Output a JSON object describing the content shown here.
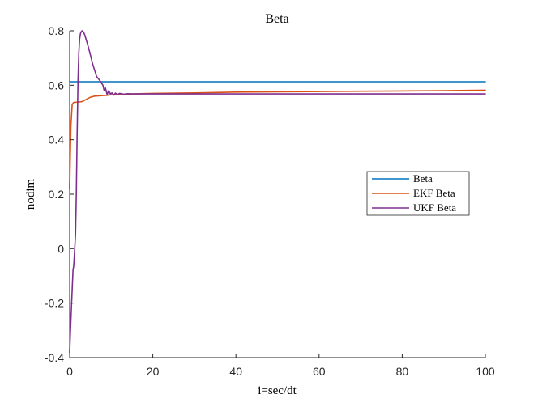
{
  "chart_data": {
    "type": "line",
    "title": "Beta",
    "xlabel": "i=sec/dt",
    "ylabel": "nodim",
    "xlim": [
      0,
      100
    ],
    "ylim": [
      -0.4,
      0.8
    ],
    "xticks": [
      "0",
      "20",
      "40",
      "60",
      "80",
      "100"
    ],
    "yticks": [
      "-0.4",
      "-0.2",
      "0",
      "0.2",
      "0.4",
      "0.6",
      "0.8"
    ],
    "grid": false,
    "legend_position": "right",
    "series": [
      {
        "name": "Beta",
        "color": "#0072BD",
        "x": [
          0,
          100
        ],
        "y": [
          0.613,
          0.613
        ]
      },
      {
        "name": "EKF Beta",
        "color": "#D95319",
        "x": [
          0,
          0.3,
          0.6,
          1,
          2,
          3,
          4,
          5,
          6,
          7,
          8,
          9,
          10,
          15,
          20,
          30,
          40,
          50,
          60,
          70,
          80,
          90,
          100
        ],
        "y": [
          0.22,
          0.45,
          0.53,
          0.537,
          0.538,
          0.54,
          0.548,
          0.556,
          0.56,
          0.561,
          0.562,
          0.563,
          0.565,
          0.568,
          0.57,
          0.572,
          0.575,
          0.576,
          0.577,
          0.578,
          0.579,
          0.58,
          0.582
        ]
      },
      {
        "name": "UKF Beta",
        "color": "#7E2F8E",
        "x": [
          0,
          0.2,
          0.4,
          0.6,
          0.8,
          1.0,
          1.2,
          1.4,
          1.6,
          1.8,
          2.0,
          2.2,
          2.4,
          2.6,
          2.8,
          3.0,
          3.2,
          3.4,
          3.6,
          3.8,
          4.0,
          4.5,
          5,
          5.5,
          6,
          6.5,
          7,
          7.5,
          8,
          8.3,
          8.6,
          9,
          9.4,
          9.8,
          10.2,
          10.6,
          11,
          11.5,
          12,
          13,
          14,
          15,
          20,
          30,
          40,
          50,
          60,
          70,
          80,
          90,
          100
        ],
        "y": [
          -0.38,
          -0.3,
          -0.22,
          -0.15,
          -0.08,
          -0.06,
          0.0,
          0.05,
          0.2,
          0.42,
          0.62,
          0.72,
          0.77,
          0.79,
          0.797,
          0.8,
          0.798,
          0.793,
          0.786,
          0.776,
          0.766,
          0.74,
          0.71,
          0.68,
          0.655,
          0.632,
          0.622,
          0.612,
          0.6,
          0.58,
          0.59,
          0.566,
          0.58,
          0.568,
          0.572,
          0.564,
          0.571,
          0.566,
          0.57,
          0.567,
          0.569,
          0.568,
          0.568,
          0.568,
          0.568,
          0.568,
          0.568,
          0.568,
          0.568,
          0.568,
          0.568
        ]
      }
    ]
  }
}
